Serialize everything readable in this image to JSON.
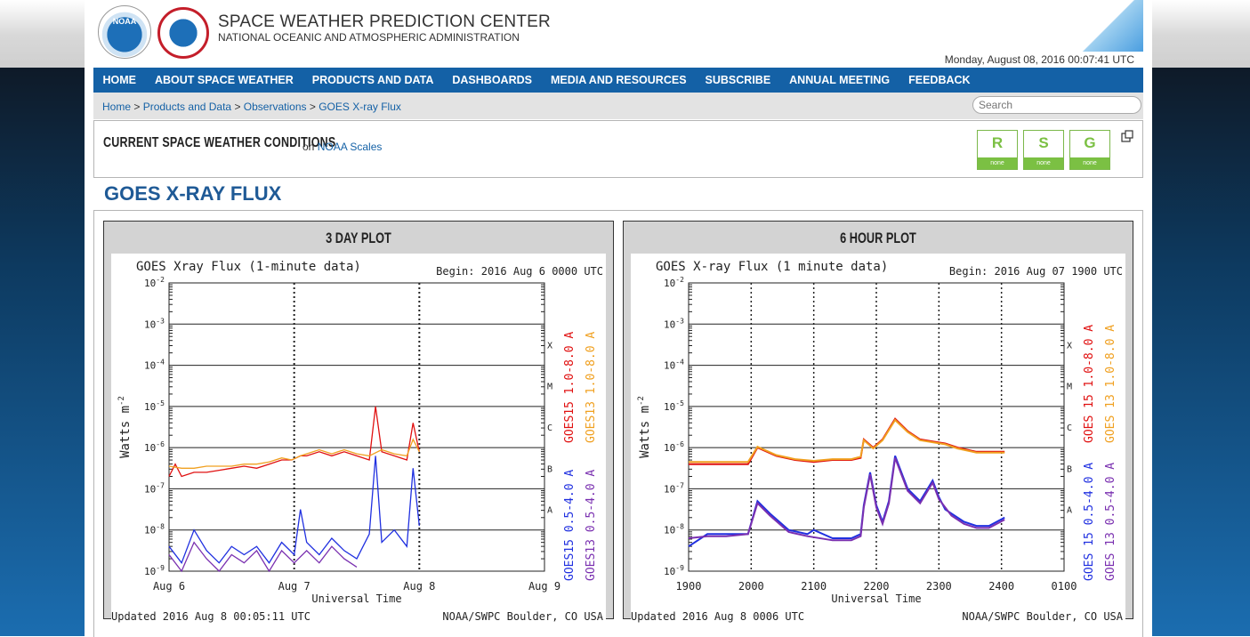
{
  "header": {
    "title": "SPACE WEATHER PREDICTION CENTER",
    "subtitle": "NATIONAL OCEANIC AND ATMOSPHERIC ADMINISTRATION",
    "datetime": "Monday, August 08, 2016 00:07:41 UTC",
    "noaa_logo_text": "NOAA"
  },
  "nav": [
    "HOME",
    "ABOUT SPACE WEATHER",
    "PRODUCTS AND DATA",
    "DASHBOARDS",
    "MEDIA AND RESOURCES",
    "SUBSCRIBE",
    "ANNUAL MEETING",
    "FEEDBACK"
  ],
  "breadcrumb": [
    "Home",
    "Products and Data",
    "Observations",
    "GOES X-ray Flux"
  ],
  "search": {
    "placeholder": "Search"
  },
  "conditions": {
    "title": "CURRENT SPACE WEATHER CONDITIONS",
    "on": "on",
    "link": "NOAA Scales",
    "scales": [
      {
        "letter": "R",
        "level": "none"
      },
      {
        "letter": "S",
        "level": "none"
      },
      {
        "letter": "G",
        "level": "none"
      }
    ]
  },
  "page_title": "GOES X-RAY FLUX",
  "panels": {
    "three_day": {
      "title": "3 DAY PLOT"
    },
    "six_hour": {
      "title": "6 HOUR PLOT"
    }
  },
  "colors": {
    "goes15_long": "#e01010",
    "goes13_long": "#f0a020",
    "goes15_short": "#2030e0",
    "goes13_short": "#7a30b0",
    "nav": "#1461a6"
  },
  "chart_data": [
    {
      "type": "line",
      "title": "GOES Xray Flux (1-minute data)",
      "begin": "Begin:  2016 Aug 6 0000 UTC",
      "xlabel": "Universal Time",
      "ylabel": "Watts m",
      "y_scale": "log",
      "ylim": [
        1e-09,
        0.01
      ],
      "y_ticks": [
        "10",
        "10",
        "10",
        "10",
        "10",
        "10",
        "10",
        "10"
      ],
      "y_exponents": [
        "-2",
        "-3",
        "-4",
        "-5",
        "-6",
        "-7",
        "-8",
        "-9"
      ],
      "flare_classes": [
        "X",
        "M",
        "C",
        "B",
        "A"
      ],
      "x_ticks": [
        "Aug 6",
        "Aug 7",
        "Aug 8",
        "Aug 9"
      ],
      "x_range_days": [
        0,
        3
      ],
      "updated": "Updated 2016 Aug  8 00:05:11 UTC",
      "credit": "NOAA/SWPC Boulder, CO USA",
      "legend": [
        "GOES15 1.0-8.0 A",
        "GOES13 1.0-8.0 A",
        "GOES15 0.5-4.0 A",
        "GOES13 0.5-4.0 A"
      ],
      "series": [
        {
          "name": "GOES15 1.0-8.0 A",
          "color_key": "goes15_long",
          "x": [
            0,
            0.05,
            0.1,
            0.2,
            0.3,
            0.4,
            0.5,
            0.6,
            0.7,
            0.8,
            0.9,
            0.98,
            1.05,
            1.1,
            1.2,
            1.3,
            1.4,
            1.5,
            1.6,
            1.65,
            1.7,
            1.8,
            1.9,
            1.95,
            2.0
          ],
          "y": [
            -6.7,
            -6.4,
            -6.7,
            -6.6,
            -6.6,
            -6.55,
            -6.5,
            -6.45,
            -6.5,
            -6.4,
            -6.3,
            -6.3,
            -6.2,
            -6.2,
            -6.1,
            -6.2,
            -6.1,
            -6.2,
            -6.3,
            -5.0,
            -6.1,
            -6.2,
            -6.3,
            -5.4,
            -6.1
          ]
        },
        {
          "name": "GOES13 1.0-8.0 A",
          "color_key": "goes13_long",
          "x": [
            0,
            0.1,
            0.2,
            0.3,
            0.4,
            0.5,
            0.6,
            0.7,
            0.8,
            0.9,
            0.98,
            1.05,
            1.1,
            1.2,
            1.3,
            1.4,
            1.5,
            1.6,
            1.7,
            1.8,
            1.9,
            1.95,
            2.0
          ],
          "y": [
            -6.45,
            -6.5,
            -6.5,
            -6.45,
            -6.45,
            -6.45,
            -6.4,
            -6.4,
            -6.35,
            -6.25,
            -6.3,
            -6.2,
            -6.15,
            -6.05,
            -6.15,
            -6.05,
            -6.15,
            -6.2,
            -6.05,
            -6.15,
            -6.2,
            -5.8,
            -6.1
          ]
        },
        {
          "name": "GOES15 0.5-4.0 A",
          "color_key": "goes15_short",
          "x": [
            0,
            0.1,
            0.2,
            0.3,
            0.4,
            0.5,
            0.6,
            0.7,
            0.8,
            0.9,
            1.0,
            1.05,
            1.1,
            1.2,
            1.3,
            1.4,
            1.5,
            1.6,
            1.65,
            1.7,
            1.8,
            1.9,
            1.95,
            2.0
          ],
          "y": [
            -8.4,
            -8.8,
            -8.0,
            -8.5,
            -8.8,
            -8.4,
            -8.6,
            -8.4,
            -8.8,
            -8.3,
            -8.6,
            -7.5,
            -8.3,
            -8.6,
            -8.2,
            -8.5,
            -8.7,
            -8.1,
            -6.2,
            -8.3,
            -8.0,
            -8.4,
            -6.5,
            -7.9
          ]
        },
        {
          "name": "GOES13 0.5-4.0 A",
          "color_key": "goes13_short",
          "x": [
            0,
            0.1,
            0.2,
            0.3,
            0.4,
            0.5,
            0.6,
            0.7,
            0.8,
            0.9,
            1.0,
            1.1,
            1.2,
            1.3,
            1.4,
            1.5
          ],
          "y": [
            -8.6,
            -9.0,
            -8.3,
            -8.7,
            -9.0,
            -8.6,
            -8.8,
            -8.5,
            -9.0,
            -8.5,
            -8.8,
            -8.5,
            -8.8,
            -8.4,
            -8.7,
            -8.9
          ]
        }
      ]
    },
    {
      "type": "line",
      "title": "GOES X-ray Flux (1 minute data)",
      "begin": "Begin: 2016 Aug 07 1900 UTC",
      "xlabel": "Universal Time",
      "ylabel": "Watts m",
      "y_scale": "log",
      "ylim": [
        1e-09,
        0.01
      ],
      "y_ticks": [
        "10",
        "10",
        "10",
        "10",
        "10",
        "10",
        "10",
        "10"
      ],
      "y_exponents": [
        "-2",
        "-3",
        "-4",
        "-5",
        "-6",
        "-7",
        "-8",
        "-9"
      ],
      "flare_classes": [
        "X",
        "M",
        "C",
        "B",
        "A"
      ],
      "x_ticks": [
        "1900",
        "2000",
        "2100",
        "2200",
        "2300",
        "2400",
        "0100"
      ],
      "x_range_hours": [
        19,
        25
      ],
      "updated": "Updated 2016 Aug  8 0006 UTC",
      "credit": "NOAA/SWPC Boulder, CO USA",
      "legend": [
        "GOES 15 1.0-8.0 A",
        "GOES 13 1.0-8.0 A",
        "GOES 15 0.5-4.0 A",
        "GOES 13 0.5-4.0 A"
      ],
      "series": [
        {
          "name": "GOES 15 1.0-8.0 A",
          "color_key": "goes15_long",
          "x": [
            19.0,
            19.5,
            19.95,
            20.1,
            20.4,
            20.7,
            21.0,
            21.3,
            21.6,
            21.75,
            21.8,
            21.95,
            22.1,
            22.3,
            22.5,
            22.7,
            22.9,
            23.1,
            23.3,
            23.6,
            23.9,
            24.05
          ],
          "y": [
            -6.4,
            -6.4,
            -6.4,
            -6.0,
            -6.2,
            -6.3,
            -6.35,
            -6.3,
            -6.3,
            -6.25,
            -5.8,
            -6.0,
            -5.8,
            -5.3,
            -5.6,
            -5.8,
            -5.85,
            -5.9,
            -6.0,
            -6.1,
            -6.1,
            -6.1
          ]
        },
        {
          "name": "GOES 13 1.0-8.0 A",
          "color_key": "goes13_long",
          "x": [
            19.0,
            19.5,
            19.95,
            20.1,
            20.4,
            20.7,
            21.0,
            21.3,
            21.6,
            21.75,
            21.8,
            21.95,
            22.1,
            22.3,
            22.5,
            22.7,
            22.9,
            23.1,
            23.3,
            23.6,
            23.9,
            24.05
          ],
          "y": [
            -6.35,
            -6.35,
            -6.35,
            -5.98,
            -6.18,
            -6.28,
            -6.32,
            -6.28,
            -6.28,
            -6.22,
            -5.82,
            -6.02,
            -5.82,
            -5.33,
            -5.62,
            -5.82,
            -5.87,
            -5.92,
            -6.02,
            -6.12,
            -6.12,
            -6.12
          ]
        },
        {
          "name": "GOES 15 0.5-4.0 A",
          "color_key": "goes15_short",
          "x": [
            19.0,
            19.3,
            19.6,
            19.95,
            20.1,
            20.3,
            20.6,
            20.9,
            21.0,
            21.3,
            21.6,
            21.75,
            21.8,
            21.9,
            22.0,
            22.1,
            22.2,
            22.3,
            22.5,
            22.7,
            22.9,
            23.0,
            23.1,
            23.2,
            23.4,
            23.6,
            23.8,
            24.05
          ],
          "y": [
            -8.4,
            -8.1,
            -8.1,
            -8.1,
            -7.3,
            -7.6,
            -8.0,
            -8.1,
            -8.0,
            -8.2,
            -8.2,
            -8.1,
            -7.4,
            -6.6,
            -7.4,
            -7.8,
            -7.3,
            -6.2,
            -7.0,
            -7.3,
            -6.8,
            -7.2,
            -7.5,
            -7.6,
            -7.8,
            -7.9,
            -7.9,
            -7.7
          ]
        },
        {
          "name": "GOES 13 0.5-4.0 A",
          "color_key": "goes13_short",
          "x": [
            19.0,
            19.3,
            19.6,
            19.95,
            20.1,
            20.3,
            20.6,
            20.9,
            21.3,
            21.6,
            21.75,
            21.8,
            21.9,
            22.0,
            22.1,
            22.2,
            22.3,
            22.5,
            22.7,
            22.9,
            23.0,
            23.2,
            23.4,
            23.6,
            23.8,
            24.05
          ],
          "y": [
            -8.2,
            -8.15,
            -8.15,
            -8.1,
            -7.35,
            -7.65,
            -8.05,
            -8.15,
            -8.25,
            -8.25,
            -8.15,
            -7.45,
            -6.65,
            -7.45,
            -7.85,
            -7.35,
            -6.25,
            -7.05,
            -7.35,
            -6.85,
            -7.25,
            -7.65,
            -7.85,
            -7.95,
            -7.95,
            -7.75
          ]
        }
      ]
    }
  ]
}
